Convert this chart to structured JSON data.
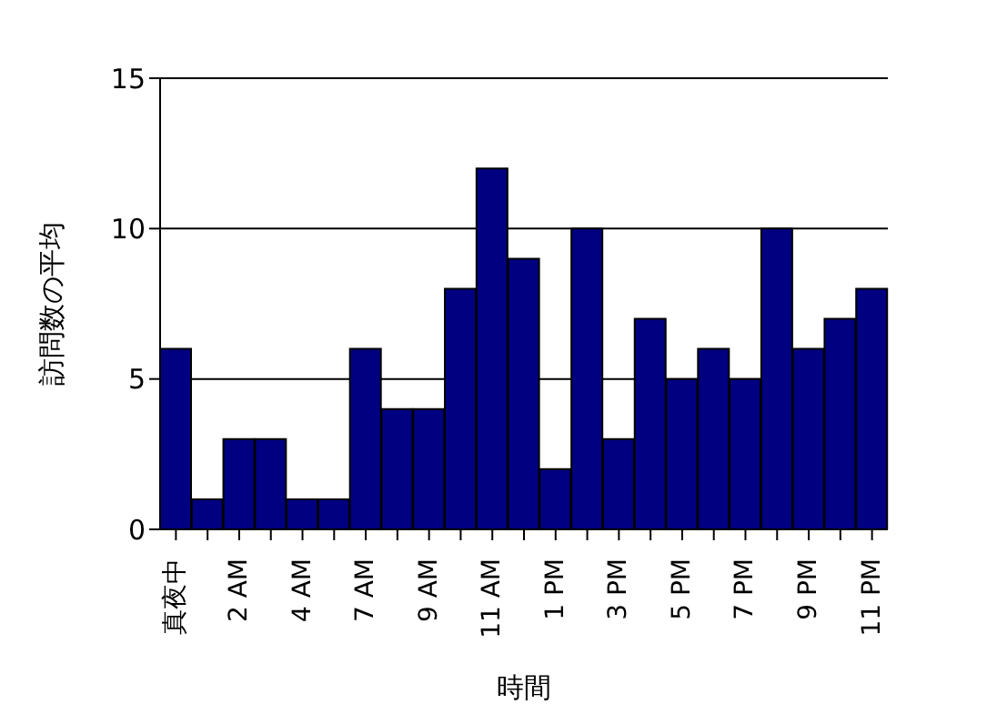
{
  "chart_data": {
    "type": "bar",
    "xlabel": "時間",
    "ylabel": "訪問数の平均",
    "categories": [
      "真夜中",
      null,
      "2 AM",
      null,
      "4 AM",
      null,
      "7 AM",
      null,
      "9 AM",
      null,
      "11 AM",
      null,
      "1 PM",
      null,
      "3 PM",
      null,
      "5 PM",
      null,
      "7 PM",
      null,
      "9 PM",
      null,
      "11 PM"
    ],
    "values": [
      6,
      1,
      3,
      3,
      1,
      1,
      6,
      4,
      4,
      8,
      12,
      9,
      2,
      10,
      3,
      7,
      5,
      6,
      5,
      10,
      6,
      7,
      8
    ],
    "color": "#000080",
    "ylim": [
      0,
      15
    ],
    "yticks": [
      0,
      5,
      10,
      15
    ],
    "grid": "y"
  }
}
